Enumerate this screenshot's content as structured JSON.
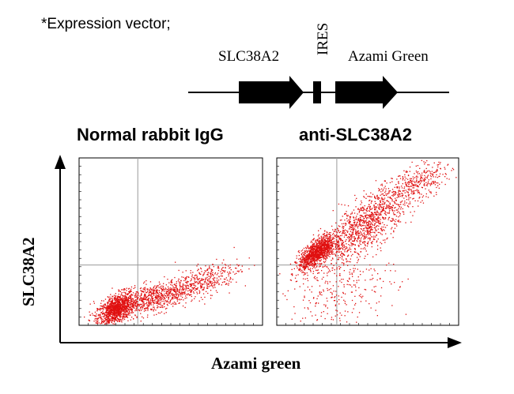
{
  "header": {
    "heading": "*Expression vector;",
    "gene1": "SLC38A2",
    "ires": "IRES",
    "gene2": "Azami Green"
  },
  "colors": {
    "dots": "#e01010",
    "grid": "#9a9a9a",
    "frame": "#000000"
  },
  "chart_data": {
    "type": "scatter",
    "xlabel": "Azami green",
    "ylabel": "SLC38A2",
    "grid": true,
    "quadrant_gates": true,
    "panels": [
      {
        "title": "Normal rabbit IgG",
        "clusters": [
          {
            "cx": 0.2,
            "cy": 0.1,
            "sx": 0.05,
            "sy": 0.05,
            "rho": 0.55,
            "n": 1100
          },
          {
            "cx": 0.42,
            "cy": 0.17,
            "sx": 0.14,
            "sy": 0.06,
            "rho": 0.7,
            "n": 900
          },
          {
            "cx": 0.7,
            "cy": 0.28,
            "sx": 0.09,
            "sy": 0.06,
            "rho": 0.6,
            "n": 250
          }
        ]
      },
      {
        "title": "anti-SLC38A2",
        "clusters": [
          {
            "cx": 0.22,
            "cy": 0.44,
            "sx": 0.05,
            "sy": 0.05,
            "rho": 0.7,
            "n": 1200
          },
          {
            "cx": 0.5,
            "cy": 0.62,
            "sx": 0.13,
            "sy": 0.13,
            "rho": 0.8,
            "n": 1200
          },
          {
            "cx": 0.8,
            "cy": 0.86,
            "sx": 0.08,
            "sy": 0.06,
            "rho": 0.5,
            "n": 250
          },
          {
            "cx": 0.35,
            "cy": 0.22,
            "sx": 0.15,
            "sy": 0.12,
            "rho": 0.3,
            "n": 300
          }
        ]
      }
    ]
  }
}
